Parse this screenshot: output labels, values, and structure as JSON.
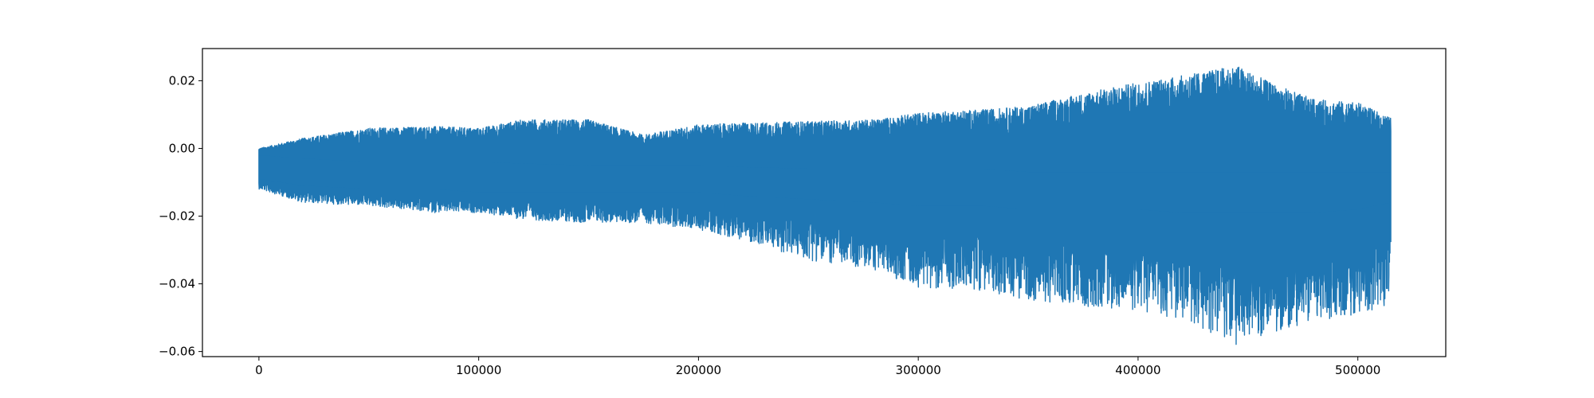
{
  "chart_data": {
    "type": "line",
    "title": "",
    "xlabel": "",
    "ylabel": "",
    "xlim": [
      -25700,
      540000
    ],
    "ylim": [
      -0.0615,
      0.0295
    ],
    "grid": false,
    "legend": false,
    "x_ticks": [
      {
        "value": 0,
        "label": "0"
      },
      {
        "value": 100000,
        "label": "100000"
      },
      {
        "value": 200000,
        "label": "200000"
      },
      {
        "value": 300000,
        "label": "300000"
      },
      {
        "value": 400000,
        "label": "400000"
      },
      {
        "value": 500000,
        "label": "500000"
      }
    ],
    "y_ticks": [
      {
        "value": 0.02,
        "label": "0.02"
      },
      {
        "value": 0.0,
        "label": "0.00"
      },
      {
        "value": -0.02,
        "label": "−0.02"
      },
      {
        "value": -0.04,
        "label": "−0.04"
      },
      {
        "value": -0.06,
        "label": "−0.06"
      }
    ],
    "series": [
      {
        "color": "#1f77b4",
        "x_range": [
          0,
          515000
        ],
        "envelope": {
          "x": [
            0,
            20000,
            50000,
            80000,
            100000,
            120000,
            150000,
            175000,
            200000,
            220000,
            250000,
            280000,
            300000,
            330000,
            350000,
            380000,
            400000,
            420000,
            445000,
            460000,
            480000,
            500000,
            515000
          ],
          "upper": [
            0.0,
            0.003,
            0.006,
            0.0065,
            0.006,
            0.0085,
            0.0085,
            0.004,
            0.007,
            0.0075,
            0.008,
            0.0085,
            0.0105,
            0.0115,
            0.0125,
            0.017,
            0.0195,
            0.0215,
            0.0245,
            0.0195,
            0.0145,
            0.0135,
            0.009
          ],
          "lower": [
            -0.012,
            -0.016,
            -0.017,
            -0.019,
            -0.019,
            -0.021,
            -0.022,
            -0.022,
            -0.024,
            -0.027,
            -0.033,
            -0.036,
            -0.041,
            -0.042,
            -0.045,
            -0.047,
            -0.048,
            -0.051,
            -0.058,
            -0.055,
            -0.051,
            -0.049,
            -0.046
          ],
          "inner_upper": [
            -0.002,
            -0.003,
            -0.004,
            -0.004,
            -0.004,
            -0.0045,
            -0.005,
            -0.005,
            -0.005,
            -0.0055,
            -0.006,
            -0.006,
            -0.006,
            -0.006,
            -0.007,
            -0.007,
            -0.007,
            -0.007,
            -0.007,
            -0.007,
            -0.007,
            -0.007,
            -0.007
          ],
          "inner_lower": [
            -0.009,
            -0.011,
            -0.012,
            -0.012,
            -0.013,
            -0.013,
            -0.013,
            -0.013,
            -0.013,
            -0.014,
            -0.015,
            -0.016,
            -0.017,
            -0.017,
            -0.018,
            -0.018,
            -0.018,
            -0.019,
            -0.019,
            -0.019,
            -0.019,
            -0.018,
            -0.016
          ]
        }
      }
    ]
  }
}
